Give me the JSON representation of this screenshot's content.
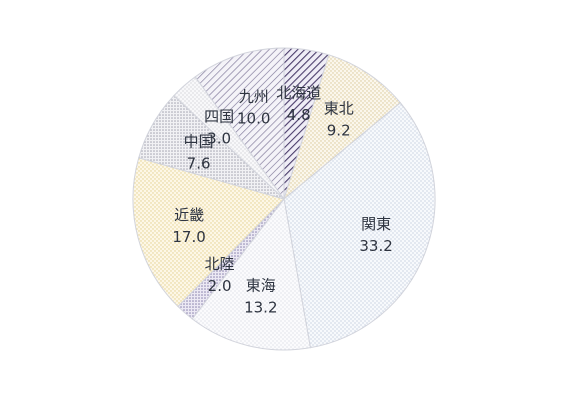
{
  "chart_data": {
    "type": "pie",
    "start_direction": "12 o'clock",
    "rotation": "clockwise",
    "slices": [
      {
        "label": "北海道",
        "value": "4.8",
        "num": 4.8,
        "pattern": "diag-dark",
        "color": "#6b5a8a"
      },
      {
        "label": "東北",
        "value": "9.2",
        "num": 9.2,
        "pattern": "dots-cream",
        "color": "#efe6cf"
      },
      {
        "label": "関東",
        "value": "33.2",
        "num": 33.2,
        "pattern": "dots-blue",
        "color": "#dfe6f2"
      },
      {
        "label": "東海",
        "value": "13.2",
        "num": 13.2,
        "pattern": "dots-light",
        "color": "#eceef4"
      },
      {
        "label": "北陸",
        "value": "2.0",
        "num": 2.0,
        "pattern": "dots-purple",
        "color": "#c8c4dc"
      },
      {
        "label": "近畿",
        "value": "17.0",
        "num": 17.0,
        "pattern": "dots-yellow",
        "color": "#f3e9c8"
      },
      {
        "label": "中国",
        "value": "7.6",
        "num": 7.6,
        "pattern": "dots-gray",
        "color": "#d6d6dc"
      },
      {
        "label": "四国",
        "value": "3.0",
        "num": 3.0,
        "pattern": "dots-faint",
        "color": "#ededf1"
      },
      {
        "label": "九州",
        "value": "10.0",
        "num": 10.0,
        "pattern": "diag-light",
        "color": "#b9b4cc"
      }
    ]
  }
}
